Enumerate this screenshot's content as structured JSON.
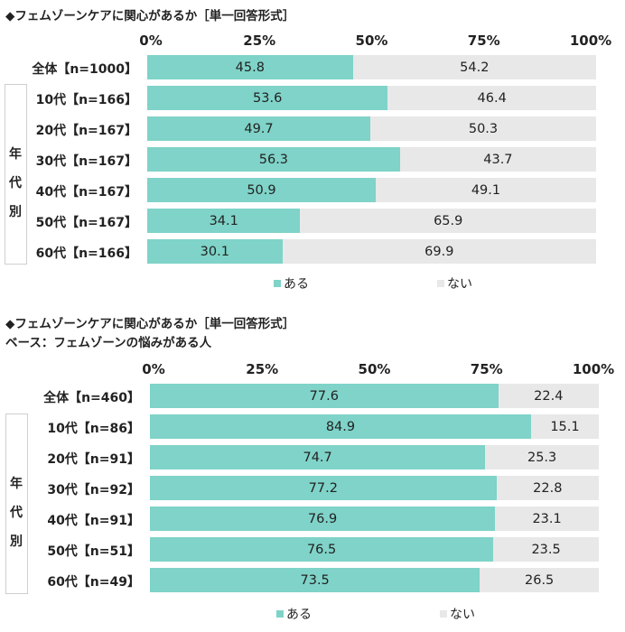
{
  "chart_data": [
    {
      "type": "bar",
      "orientation": "horizontal-stacked",
      "title": "◆フェムゾーンケアに関心があるか［単一回答形式］",
      "subtitle": "",
      "xticks": [
        "0%",
        "25%",
        "50%",
        "75%",
        "100%"
      ],
      "xlim": [
        0,
        100
      ],
      "group_label": "年代別",
      "categories": [
        "全体【n=1000】",
        "10代【n=166】",
        "20代【n=167】",
        "30代【n=167】",
        "40代【n=167】",
        "50代【n=167】",
        "60代【n=166】"
      ],
      "series": [
        {
          "name": "ある",
          "color": "#7fd3c8",
          "values": [
            "45.8",
            "53.6",
            "49.7",
            "56.3",
            "50.9",
            "34.1",
            "30.1"
          ]
        },
        {
          "name": "ない",
          "color": "#e8e8e8",
          "values": [
            "54.2",
            "46.4",
            "50.3",
            "43.7",
            "49.1",
            "65.9",
            "69.9"
          ]
        }
      ],
      "legend_position": "bottom"
    },
    {
      "type": "bar",
      "orientation": "horizontal-stacked",
      "title": "◆フェムゾーンケアに関心があるか［単一回答形式］",
      "subtitle": "ベース：フェムゾーンの悩みがある人",
      "xticks": [
        "0%",
        "25%",
        "50%",
        "75%",
        "100%"
      ],
      "xlim": [
        0,
        100
      ],
      "group_label": "年代別",
      "categories": [
        "全体【n=460】",
        "10代【n=86】",
        "20代【n=91】",
        "30代【n=92】",
        "40代【n=91】",
        "50代【n=51】",
        "60代【n=49】"
      ],
      "series": [
        {
          "name": "ある",
          "color": "#7fd3c8",
          "values": [
            "77.6",
            "84.9",
            "74.7",
            "77.2",
            "76.9",
            "76.5",
            "73.5"
          ]
        },
        {
          "name": "ない",
          "color": "#e8e8e8",
          "values": [
            "22.4",
            "15.1",
            "25.3",
            "22.8",
            "23.1",
            "23.5",
            "26.5"
          ]
        }
      ],
      "legend_position": "bottom"
    }
  ]
}
